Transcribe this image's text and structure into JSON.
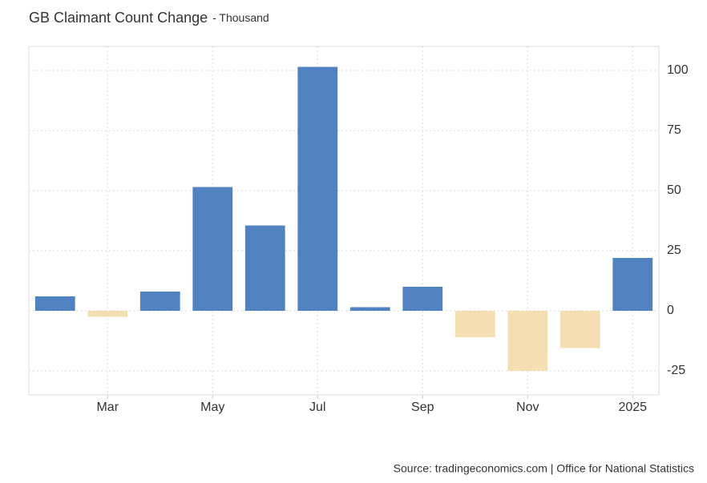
{
  "chart_data": {
    "type": "bar",
    "title": "GB Claimant Count Change",
    "subtitle": "- Thousand",
    "source": "Source: tradingeconomics.com | Office for National Statistics",
    "categories": [
      null,
      "Mar",
      null,
      "May",
      null,
      "Jul",
      null,
      "Sep",
      null,
      "Nov",
      null,
      "2025"
    ],
    "values": [
      6,
      -2.5,
      8,
      51.5,
      35.5,
      101.5,
      1.5,
      10,
      -11,
      -25,
      -15.5,
      22
    ],
    "color": "#5082c2",
    "negative_color": "#f5dfb2",
    "ylim": [
      -35,
      110
    ],
    "yticks": [
      -25,
      0,
      25,
      50,
      75,
      100
    ],
    "grid": true
  }
}
